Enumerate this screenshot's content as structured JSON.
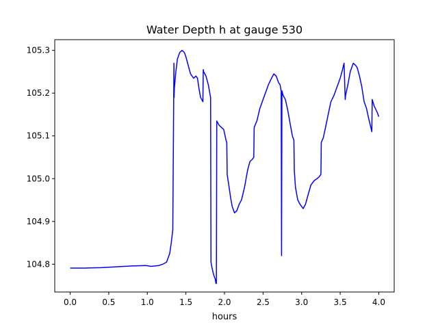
{
  "chart_data": {
    "type": "line",
    "title": "Water Depth h at gauge 530",
    "xlabel": "hours",
    "ylabel": "",
    "xlim": [
      -0.2,
      4.2
    ],
    "ylim": [
      104.735,
      105.325
    ],
    "xticks": [
      0.0,
      0.5,
      1.0,
      1.5,
      2.0,
      2.5,
      3.0,
      3.5,
      4.0
    ],
    "xtick_labels": [
      "0.0",
      "0.5",
      "1.0",
      "1.5",
      "2.0",
      "2.5",
      "3.0",
      "3.5",
      "4.0"
    ],
    "yticks": [
      104.8,
      104.9,
      105.0,
      105.1,
      105.2,
      105.3
    ],
    "ytick_labels": [
      "104.8",
      "104.9",
      "105.0",
      "105.1",
      "105.2",
      "105.3"
    ],
    "grid": false,
    "line_color": "#0000ff",
    "series": [
      {
        "x": [
          0.0,
          0.2,
          0.4,
          0.6,
          0.8,
          0.98,
          1.05,
          1.15,
          1.2,
          1.25,
          1.29,
          1.31,
          1.33,
          1.345,
          1.347,
          1.35,
          1.37,
          1.39,
          1.42,
          1.45,
          1.48,
          1.5,
          1.53,
          1.56,
          1.6,
          1.63,
          1.65,
          1.67,
          1.69,
          1.72,
          1.725,
          1.73,
          1.76,
          1.79,
          1.82,
          1.825,
          1.84,
          1.86,
          1.88,
          1.89,
          1.895,
          1.9,
          1.93,
          1.96,
          1.99,
          2.02,
          2.03,
          2.035,
          2.06,
          2.08,
          2.1,
          2.13,
          2.16,
          2.19,
          2.22,
          2.26,
          2.3,
          2.33,
          2.36,
          2.38,
          2.385,
          2.42,
          2.46,
          2.5,
          2.53,
          2.57,
          2.61,
          2.64,
          2.67,
          2.7,
          2.72,
          2.735,
          2.74,
          2.745,
          2.76,
          2.79,
          2.82,
          2.85,
          2.88,
          2.9,
          2.905,
          2.92,
          2.95,
          2.98,
          3.02,
          3.05,
          3.08,
          3.12,
          3.16,
          3.2,
          3.23,
          3.25,
          3.255,
          3.28,
          3.31,
          3.35,
          3.38,
          3.42,
          3.45,
          3.48,
          3.5,
          3.53,
          3.55,
          3.565,
          3.57,
          3.6,
          3.63,
          3.65,
          3.67,
          3.7,
          3.72,
          3.75,
          3.78,
          3.81,
          3.84,
          3.87,
          3.89,
          3.91,
          3.915,
          3.94,
          3.98,
          4.0
        ],
        "y": [
          104.791,
          104.791,
          104.792,
          104.794,
          104.796,
          104.797,
          104.795,
          104.797,
          104.8,
          104.805,
          104.825,
          104.85,
          104.88,
          105.27,
          105.19,
          105.21,
          105.25,
          105.28,
          105.295,
          105.3,
          105.295,
          105.285,
          105.265,
          105.245,
          105.235,
          105.24,
          105.235,
          105.21,
          105.19,
          105.18,
          105.255,
          105.25,
          105.24,
          105.22,
          105.19,
          104.805,
          104.79,
          104.775,
          104.765,
          104.755,
          104.755,
          105.135,
          105.125,
          105.12,
          105.115,
          105.09,
          105.085,
          105.01,
          104.98,
          104.955,
          104.935,
          104.92,
          104.925,
          104.94,
          104.95,
          104.98,
          105.02,
          105.04,
          105.045,
          105.05,
          105.12,
          105.135,
          105.165,
          105.185,
          105.2,
          105.22,
          105.235,
          105.245,
          105.24,
          105.225,
          105.22,
          105.205,
          104.82,
          105.205,
          105.195,
          105.185,
          105.16,
          105.13,
          105.1,
          105.09,
          105.02,
          104.98,
          104.95,
          104.94,
          104.93,
          104.94,
          104.96,
          104.985,
          104.995,
          105.0,
          105.005,
          105.01,
          105.085,
          105.095,
          105.12,
          105.155,
          105.18,
          105.195,
          105.21,
          105.225,
          105.235,
          105.255,
          105.27,
          105.185,
          105.195,
          105.22,
          105.25,
          105.26,
          105.27,
          105.265,
          105.26,
          105.24,
          105.215,
          105.18,
          105.165,
          105.14,
          105.125,
          105.11,
          105.185,
          105.17,
          105.155,
          105.145
        ]
      }
    ]
  }
}
